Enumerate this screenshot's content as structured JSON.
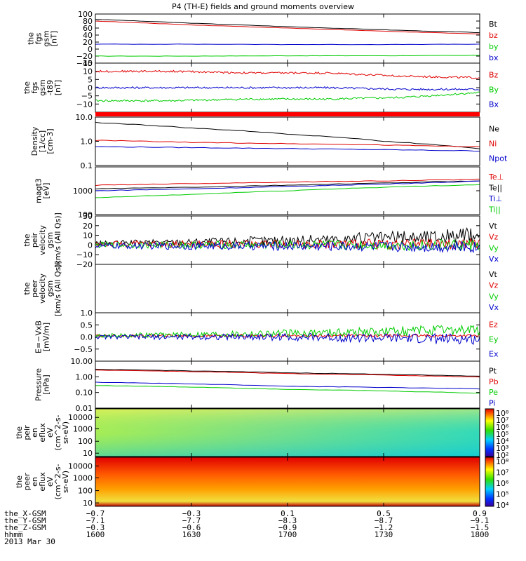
{
  "title": "P4 (TH-E) fields and ground moments overview",
  "colors": {
    "black": "#000000",
    "red": "#e00000",
    "green": "#00cc00",
    "blue": "#0000cc"
  },
  "chart_data": [
    {
      "id": "fgs_gsm",
      "type": "line",
      "ylabel_lines": [
        "the",
        "fgs",
        "gsm",
        "[nT]"
      ],
      "ylim": [
        -40,
        100
      ],
      "yticks": [
        "100",
        "80",
        "60",
        "40",
        "20",
        "0",
        "−20",
        "−40"
      ],
      "ytick_values": [
        100,
        80,
        60,
        40,
        20,
        0,
        -20,
        -40
      ],
      "series": [
        {
          "name": "Bt",
          "color": "black",
          "x": [
            0,
            0.25,
            0.5,
            0.75,
            1
          ],
          "y": [
            85,
            74,
            64,
            55,
            47
          ]
        },
        {
          "name": "bz",
          "color": "red",
          "x": [
            0,
            0.25,
            0.5,
            0.75,
            1
          ],
          "y": [
            80,
            69,
            60,
            51,
            43
          ]
        },
        {
          "name": "by",
          "color": "green",
          "x": [
            0,
            0.25,
            0.5,
            0.75,
            1
          ],
          "y": [
            -20,
            -20,
            -19,
            -19,
            -18
          ]
        },
        {
          "name": "bx",
          "color": "blue",
          "x": [
            0,
            0.25,
            0.5,
            0.75,
            1
          ],
          "y": [
            14,
            14,
            13,
            13,
            14
          ]
        }
      ],
      "legend": [
        "Bt",
        "bz",
        "by",
        "bx"
      ]
    },
    {
      "id": "fgs_gsm_t89",
      "type": "line",
      "ylabel_lines": [
        "the",
        "fgs",
        "gsm",
        "-t89",
        "[nT]"
      ],
      "ylim": [
        -15,
        15
      ],
      "yticks": [
        "15",
        "10",
        "5",
        "0",
        "−5",
        "−10"
      ],
      "ytick_values": [
        15,
        10,
        5,
        0,
        -5,
        -10
      ],
      "series": [
        {
          "name": "Bz",
          "color": "red",
          "x": [
            0,
            0.2,
            0.4,
            0.6,
            0.8,
            1
          ],
          "y": [
            10,
            10,
            9,
            9,
            7,
            6
          ]
        },
        {
          "name": "By",
          "color": "green",
          "x": [
            0,
            0.2,
            0.4,
            0.6,
            0.8,
            1
          ],
          "y": [
            -8,
            -8,
            -7,
            -7,
            -6,
            -3
          ]
        },
        {
          "name": "Bx",
          "color": "blue",
          "x": [
            0,
            0.2,
            0.4,
            0.6,
            0.8,
            1
          ],
          "y": [
            0,
            0,
            0,
            0,
            -1,
            -1
          ]
        }
      ],
      "legend": [
        "Bz",
        "By",
        "Bx"
      ]
    },
    {
      "id": "density",
      "type": "line",
      "log": true,
      "ylabel_lines": [
        "Density",
        "[1/cc]",
        "[cm-3]"
      ],
      "ylim": [
        0.1,
        10
      ],
      "yticks": [
        "10.0",
        "1.0",
        "0.1"
      ],
      "ytick_values": [
        10,
        1,
        0.1
      ],
      "series": [
        {
          "name": "Ne",
          "color": "black",
          "x": [
            0,
            0.25,
            0.5,
            0.75,
            1
          ],
          "y": [
            6,
            3.5,
            2,
            1,
            0.5
          ]
        },
        {
          "name": "Ni",
          "color": "red",
          "x": [
            0,
            0.25,
            0.5,
            0.75,
            1
          ],
          "y": [
            1.1,
            0.9,
            0.8,
            0.7,
            0.6
          ]
        },
        {
          "name": "Npot",
          "color": "blue",
          "x": [
            0,
            0.25,
            0.5,
            0.75,
            1
          ],
          "y": [
            0.6,
            0.55,
            0.5,
            0.45,
            0.4
          ]
        }
      ],
      "legend": [
        "Ne",
        "Ni",
        "Npot"
      ]
    },
    {
      "id": "temperature",
      "type": "line",
      "log": true,
      "ylabel_lines": [
        "magt3",
        "[eV]"
      ],
      "ylim": [
        100,
        10000
      ],
      "yticks": [
        "1000",
        "100"
      ],
      "ytick_values": [
        1000,
        100
      ],
      "series": [
        {
          "name": "Te⊥",
          "color": "red",
          "x": [
            0,
            0.25,
            0.5,
            0.75,
            1
          ],
          "y": [
            1700,
            2000,
            2300,
            2600,
            3000
          ]
        },
        {
          "name": "Te||",
          "color": "black",
          "x": [
            0,
            0.25,
            0.5,
            0.75,
            1
          ],
          "y": [
            1200,
            1400,
            1700,
            2100,
            2600
          ]
        },
        {
          "name": "Ti⊥",
          "color": "blue",
          "x": [
            0,
            0.25,
            0.5,
            0.75,
            1
          ],
          "y": [
            1000,
            1200,
            1500,
            1900,
            2500
          ]
        },
        {
          "name": "Ti||",
          "color": "green",
          "x": [
            0,
            0.25,
            0.5,
            0.75,
            1
          ],
          "y": [
            500,
            700,
            1000,
            1400,
            1800
          ]
        }
      ],
      "legend": [
        "Te⊥",
        "Te||",
        "Ti⊥",
        "Ti||"
      ]
    },
    {
      "id": "peir_velocity",
      "type": "line",
      "ylabel_lines": [
        "the",
        "peir",
        "velocity",
        "gsm",
        "[km/s (All Qs)]"
      ],
      "ylim": [
        -20,
        30
      ],
      "yticks": [
        "30",
        "20",
        "10",
        "0",
        "−10",
        "−20"
      ],
      "ytick_values": [
        30,
        20,
        10,
        0,
        -10,
        -20
      ],
      "series": [
        {
          "name": "Vt",
          "color": "black",
          "x": [
            0,
            0.5,
            1
          ],
          "y": [
            2,
            5,
            10
          ]
        },
        {
          "name": "Vz",
          "color": "red",
          "x": [
            0,
            0.5,
            1
          ],
          "y": [
            1,
            1,
            1
          ]
        },
        {
          "name": "Vy",
          "color": "green",
          "x": [
            0,
            0.5,
            1
          ],
          "y": [
            0,
            0,
            0
          ]
        },
        {
          "name": "Vx",
          "color": "blue",
          "x": [
            0,
            0.5,
            1
          ],
          "y": [
            -1,
            -1,
            -2
          ]
        }
      ],
      "legend": [
        "Vt",
        "Vz",
        "Vy",
        "Vx"
      ]
    },
    {
      "id": "peer_velocity",
      "type": "line",
      "ylabel_lines": [
        "the",
        "peer",
        "velocity",
        "gsm",
        "[km/s (All Qs)]"
      ],
      "ylim": [
        0,
        1
      ],
      "yticks": [],
      "ytick_values": [],
      "series": [],
      "legend": [
        "Vt",
        "Vz",
        "Vy",
        "Vx"
      ]
    },
    {
      "id": "efield",
      "type": "line",
      "ylabel_lines": [
        "E=−VxB",
        "[mV/m]"
      ],
      "ylim": [
        -1,
        1
      ],
      "yticks": [
        "1.0",
        "0.5",
        "0.0",
        "−0.5"
      ],
      "ytick_values": [
        1,
        0.5,
        0,
        -0.5
      ],
      "series": [
        {
          "name": "Ez",
          "color": "red",
          "x": [
            0,
            0.5,
            1
          ],
          "y": [
            0.05,
            0.05,
            0.05
          ]
        },
        {
          "name": "Ey",
          "color": "green",
          "x": [
            0,
            0.5,
            1
          ],
          "y": [
            0.05,
            0.15,
            0.3
          ]
        },
        {
          "name": "Ex",
          "color": "blue",
          "x": [
            0,
            0.5,
            1
          ],
          "y": [
            0,
            0,
            -0.1
          ]
        }
      ],
      "legend": [
        "Ez",
        "Ey",
        "Ex"
      ]
    },
    {
      "id": "pressure",
      "type": "line",
      "log": true,
      "ylabel_lines": [
        "Pressure",
        "[nPa]"
      ],
      "ylim": [
        0.01,
        10
      ],
      "yticks": [
        "10.00",
        "1.00",
        "0.10",
        "0.01"
      ],
      "ytick_values": [
        10,
        1,
        0.1,
        0.01
      ],
      "series": [
        {
          "name": "Pt",
          "color": "black",
          "x": [
            0,
            0.5,
            1
          ],
          "y": [
            3,
            1.8,
            1.1
          ]
        },
        {
          "name": "Pb",
          "color": "red",
          "x": [
            0,
            0.5,
            1
          ],
          "y": [
            2.7,
            1.6,
            0.95
          ]
        },
        {
          "name": "Pe",
          "color": "green",
          "x": [
            0,
            0.5,
            1
          ],
          "y": [
            0.28,
            0.16,
            0.09
          ]
        },
        {
          "name": "Pi",
          "color": "blue",
          "x": [
            0,
            0.5,
            1
          ],
          "y": [
            0.45,
            0.25,
            0.17
          ]
        }
      ],
      "legend": [
        "Pt",
        "Pb",
        "Pe",
        "Pi"
      ]
    },
    {
      "id": "peir_en_eflux",
      "type": "heatmap",
      "ylabel_lines": [
        "the",
        "peir",
        "en",
        "eflux",
        "eV",
        "(cm^2-s-",
        "sr-eV)"
      ],
      "yticks": [
        "10000",
        "1000",
        "100",
        "10"
      ],
      "colorbar_ticks": [
        "10⁸",
        "10⁷",
        "10⁶",
        "10⁵",
        "10⁴",
        "10³",
        "10²"
      ]
    },
    {
      "id": "peer_en_eflux",
      "type": "heatmap",
      "ylabel_lines": [
        "the",
        "peer",
        "en",
        "eflux",
        "eV",
        "(cm^2-s-",
        "sr-eV)"
      ],
      "yticks": [
        "10000",
        "1000",
        "100",
        "10"
      ],
      "colorbar_ticks": [
        "10⁸",
        "10⁷",
        "10⁶",
        "10⁵",
        "10⁴"
      ]
    }
  ],
  "xaxis": {
    "labels": [
      "the_X-GSM",
      "the_Y-GSM",
      "the_Z-GSM",
      "hhmm",
      "2013 Mar 30"
    ],
    "ticks": [
      {
        "x": [
          "−0.7",
          "−7.1",
          "−0.3",
          "1600"
        ]
      },
      {
        "x": [
          "−0.3",
          "−7.7",
          "−0.6",
          "1630"
        ]
      },
      {
        "x": [
          "0.1",
          "−8.3",
          "−0.9",
          "1700"
        ]
      },
      {
        "x": [
          "0.5",
          "−8.7",
          "−1.2",
          "1730"
        ]
      },
      {
        "x": [
          "0.9",
          "−9.1",
          "−1.5",
          "1800"
        ]
      }
    ]
  }
}
